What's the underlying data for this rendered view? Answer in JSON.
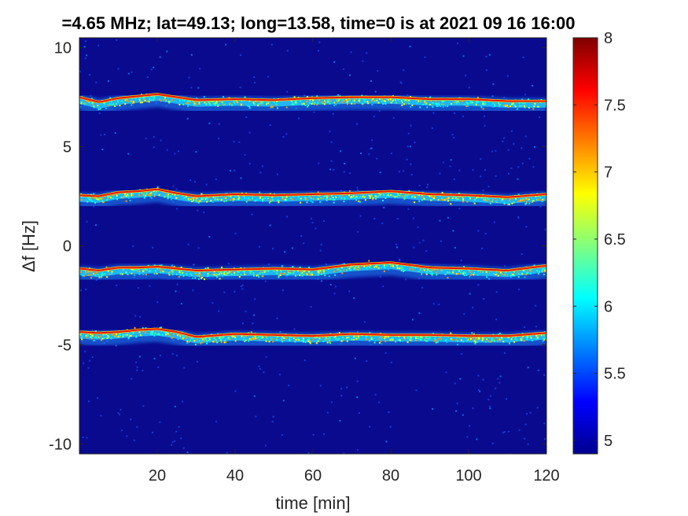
{
  "chart_data": {
    "type": "heatmap",
    "title": "=4.65 MHz;  lat=49.13; long=13.58, time=0 is at 2021 09 16 16:00",
    "xlabel": "time [min]",
    "ylabel": "Δf [Hz]",
    "xlim": [
      0,
      120
    ],
    "ylim": [
      -10.5,
      10.5
    ],
    "xticks": [
      20,
      40,
      60,
      80,
      100,
      120
    ],
    "yticks": [
      -10,
      -5,
      0,
      5,
      10
    ],
    "clim": [
      4.9,
      8.0
    ],
    "colorbar_ticks": [
      5,
      5.5,
      6,
      6.5,
      7,
      7.5,
      8
    ],
    "colormap": "jet",
    "background_color": "#0a0a8f",
    "grid": false,
    "traces": [
      {
        "x": [
          0,
          5,
          10,
          15,
          20,
          25,
          30,
          40,
          50,
          60,
          70,
          80,
          90,
          100,
          110,
          120
        ],
        "y": [
          7.5,
          7.25,
          7.45,
          7.55,
          7.65,
          7.5,
          7.35,
          7.4,
          7.35,
          7.45,
          7.5,
          7.5,
          7.4,
          7.4,
          7.3,
          7.3
        ]
      },
      {
        "x": [
          0,
          5,
          10,
          15,
          20,
          25,
          30,
          40,
          50,
          60,
          70,
          80,
          90,
          100,
          110,
          120
        ],
        "y": [
          2.55,
          2.5,
          2.7,
          2.75,
          2.85,
          2.65,
          2.5,
          2.6,
          2.55,
          2.6,
          2.65,
          2.75,
          2.6,
          2.55,
          2.45,
          2.6
        ]
      },
      {
        "x": [
          0,
          5,
          10,
          15,
          20,
          25,
          30,
          40,
          50,
          60,
          70,
          80,
          90,
          100,
          110,
          120
        ],
        "y": [
          -1.15,
          -1.25,
          -1.1,
          -1.1,
          -1.05,
          -1.15,
          -1.25,
          -1.2,
          -1.15,
          -1.2,
          -0.95,
          -0.85,
          -1.1,
          -1.15,
          -1.25,
          -1.0
        ]
      },
      {
        "x": [
          0,
          5,
          10,
          15,
          20,
          25,
          30,
          40,
          50,
          60,
          70,
          80,
          90,
          100,
          110,
          120
        ],
        "y": [
          -4.35,
          -4.4,
          -4.35,
          -4.25,
          -4.2,
          -4.35,
          -4.6,
          -4.45,
          -4.5,
          -4.55,
          -4.45,
          -4.5,
          -4.5,
          -4.55,
          -4.55,
          -4.4
        ]
      }
    ]
  }
}
